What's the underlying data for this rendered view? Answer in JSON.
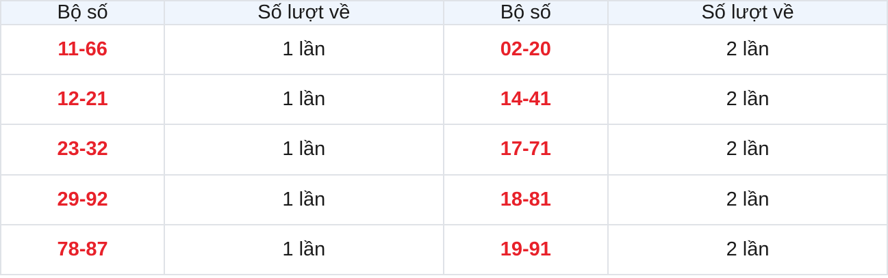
{
  "colors": {
    "header_bg": "#eff5fd",
    "border": "#dfe2e7",
    "pair_red": "#e8212a",
    "text": "#1a1a1a"
  },
  "tables": [
    {
      "name": "pair-frequency-table-left",
      "headers": [
        "Bộ số",
        "Số lượt về"
      ],
      "rows": [
        {
          "pair": "11-66",
          "count": "1 lần"
        },
        {
          "pair": "12-21",
          "count": "1 lần"
        },
        {
          "pair": "23-32",
          "count": "1 lần"
        },
        {
          "pair": "29-92",
          "count": "1 lần"
        },
        {
          "pair": "78-87",
          "count": "1 lần"
        }
      ]
    },
    {
      "name": "pair-frequency-table-right",
      "headers": [
        "Bộ số",
        "Số lượt về"
      ],
      "rows": [
        {
          "pair": "02-20",
          "count": "2 lần"
        },
        {
          "pair": "14-41",
          "count": "2 lần"
        },
        {
          "pair": "17-71",
          "count": "2 lần"
        },
        {
          "pair": "18-81",
          "count": "2 lần"
        },
        {
          "pair": "19-91",
          "count": "2 lần"
        }
      ]
    }
  ]
}
